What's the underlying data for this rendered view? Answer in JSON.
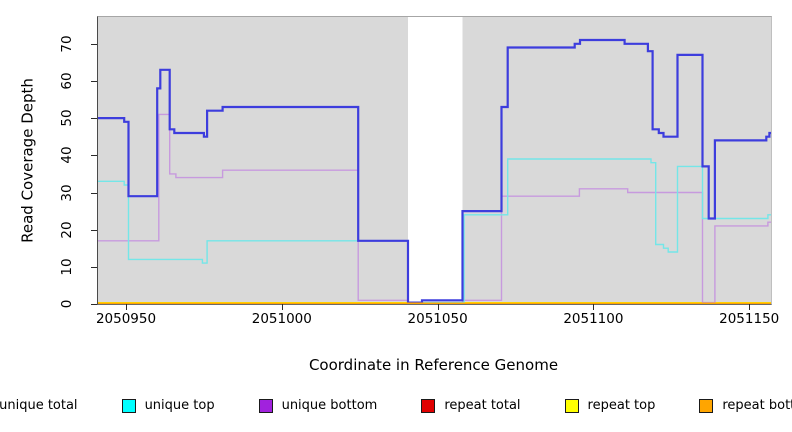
{
  "chart_data": {
    "type": "line",
    "step_mode": "step-after",
    "title": "",
    "xlabel": "Coordinate in Reference Genome",
    "ylabel": "Read Coverage Depth",
    "xlim": [
      2050941,
      2051157
    ],
    "ylim": [
      0,
      77.2
    ],
    "x_ticks": [
      2050950,
      2051000,
      2051050,
      2051100,
      2051150
    ],
    "y_ticks": [
      0,
      10,
      20,
      30,
      40,
      50,
      60,
      70
    ],
    "grid": false,
    "legend_position": "bottom",
    "background": "#ffffff",
    "plot_background": "#d9d9d9",
    "axis_color": "#2b2b2b",
    "highlight_band": {
      "x0": 2051040.5,
      "x1": 2051058,
      "color": "#ffffff"
    },
    "series": [
      {
        "name": "repeat total",
        "legend_color": "#e00000",
        "line_color": "#e00000",
        "line_width": 1.2,
        "points": [
          [
            2050941,
            0
          ]
        ]
      },
      {
        "name": "repeat top",
        "legend_color": "#ffff00",
        "line_color": "#ffff00",
        "line_width": 1.2,
        "points": [
          [
            2050941,
            0
          ]
        ]
      },
      {
        "name": "unique bottom",
        "legend_color": "#a122dd",
        "line_color": "#c79ade",
        "line_width": 1.4,
        "points": [
          [
            2050941,
            17
          ],
          [
            2050960.5,
            51
          ],
          [
            2050964,
            35
          ],
          [
            2050966,
            34
          ],
          [
            2050981,
            36
          ],
          [
            2051024.5,
            1
          ],
          [
            2051040.5,
            0
          ],
          [
            2051058,
            1
          ],
          [
            2051070.5,
            29
          ],
          [
            2051095.5,
            31
          ],
          [
            2051111,
            30
          ],
          [
            2051135,
            0
          ],
          [
            2051139,
            21
          ],
          [
            2051156,
            22
          ]
        ]
      },
      {
        "name": "unique top",
        "legend_color": "#00ffff",
        "line_color": "#74e6e8",
        "line_width": 1.4,
        "points": [
          [
            2050941,
            33
          ],
          [
            2050949.4,
            32
          ],
          [
            2050950.8,
            12
          ],
          [
            2050974.5,
            11
          ],
          [
            2050976,
            17
          ],
          [
            2051040.5,
            0
          ],
          [
            2051058.5,
            24
          ],
          [
            2051072.5,
            39
          ],
          [
            2051118.5,
            38
          ],
          [
            2051120,
            16
          ],
          [
            2051122.5,
            15
          ],
          [
            2051124,
            14
          ],
          [
            2051127,
            37
          ],
          [
            2051135,
            23
          ],
          [
            2051156,
            24
          ]
        ]
      },
      {
        "name": "unique total",
        "legend_color": "#2222e0",
        "line_color": "#3d3ddd",
        "line_width": 2.2,
        "points": [
          [
            2050941,
            50
          ],
          [
            2050949.4,
            49
          ],
          [
            2050950.8,
            29
          ],
          [
            2050960,
            58
          ],
          [
            2050961,
            63
          ],
          [
            2050964,
            47
          ],
          [
            2050965.5,
            46
          ],
          [
            2050975,
            45
          ],
          [
            2050976,
            52
          ],
          [
            2050981,
            53
          ],
          [
            2051024.5,
            17
          ],
          [
            2051040.5,
            0
          ],
          [
            2051045,
            1
          ],
          [
            2051058,
            25
          ],
          [
            2051070.5,
            53
          ],
          [
            2051072.5,
            69
          ],
          [
            2051094,
            70
          ],
          [
            2051095.7,
            71
          ],
          [
            2051110,
            70
          ],
          [
            2051117.5,
            68
          ],
          [
            2051119,
            47
          ],
          [
            2051121,
            46
          ],
          [
            2051122.5,
            45
          ],
          [
            2051127,
            67
          ],
          [
            2051135,
            37
          ],
          [
            2051137,
            23
          ],
          [
            2051139,
            44
          ],
          [
            2051155.5,
            45
          ],
          [
            2051156.5,
            46
          ]
        ]
      },
      {
        "name": "repeat bottom",
        "legend_color": "#ffa500",
        "line_color": "#ffa500",
        "line_width": 1.8,
        "points": [
          [
            2050941,
            0
          ]
        ]
      }
    ],
    "legend_order": [
      "unique total",
      "unique top",
      "unique bottom",
      "repeat total",
      "repeat top",
      "repeat bottom"
    ]
  }
}
